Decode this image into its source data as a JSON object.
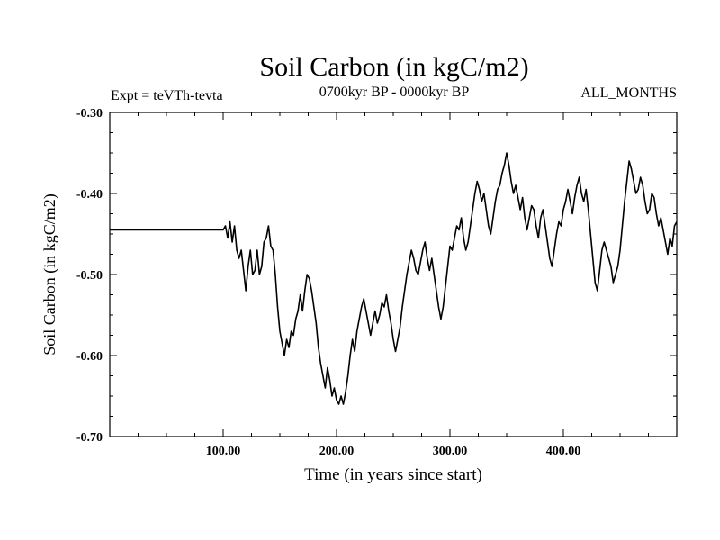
{
  "chart_data": {
    "type": "line",
    "title": "Soil Carbon (in kgC/m2)",
    "subtitle": "0700kyr BP - 0000kyr BP",
    "left_note": "Expt = teVTh-tevta",
    "right_note": "ALL_MONTHS",
    "xlabel": "Time (in years since start)",
    "ylabel": "Soil Carbon (in kgC/m2)",
    "xlim": [
      0,
      500
    ],
    "ylim": [
      -0.7,
      -0.3
    ],
    "x_tick_labels": [
      {
        "value": 100,
        "label": "100.00"
      },
      {
        "value": 200,
        "label": "200.00"
      },
      {
        "value": 300,
        "label": "300.00"
      },
      {
        "value": 400,
        "label": "400.00"
      }
    ],
    "y_tick_labels": [
      {
        "value": -0.3,
        "label": "-0.30"
      },
      {
        "value": -0.4,
        "label": "-0.40"
      },
      {
        "value": -0.5,
        "label": "-0.50"
      },
      {
        "value": -0.6,
        "label": "-0.60"
      },
      {
        "value": -0.7,
        "label": "-0.70"
      }
    ],
    "grid": false,
    "series": [
      {
        "color": "#000000",
        "points": [
          [
            0,
            -0.445
          ],
          [
            100,
            -0.445
          ],
          [
            102,
            -0.44
          ],
          [
            104,
            -0.455
          ],
          [
            106,
            -0.435
          ],
          [
            108,
            -0.46
          ],
          [
            110,
            -0.44
          ],
          [
            112,
            -0.47
          ],
          [
            114,
            -0.48
          ],
          [
            116,
            -0.47
          ],
          [
            118,
            -0.495
          ],
          [
            120,
            -0.52
          ],
          [
            122,
            -0.49
          ],
          [
            124,
            -0.47
          ],
          [
            126,
            -0.5
          ],
          [
            128,
            -0.495
          ],
          [
            130,
            -0.47
          ],
          [
            132,
            -0.5
          ],
          [
            134,
            -0.49
          ],
          [
            136,
            -0.46
          ],
          [
            138,
            -0.455
          ],
          [
            140,
            -0.44
          ],
          [
            142,
            -0.465
          ],
          [
            144,
            -0.47
          ],
          [
            146,
            -0.5
          ],
          [
            148,
            -0.54
          ],
          [
            150,
            -0.57
          ],
          [
            152,
            -0.585
          ],
          [
            154,
            -0.6
          ],
          [
            156,
            -0.58
          ],
          [
            158,
            -0.59
          ],
          [
            160,
            -0.57
          ],
          [
            162,
            -0.575
          ],
          [
            164,
            -0.555
          ],
          [
            166,
            -0.545
          ],
          [
            168,
            -0.525
          ],
          [
            170,
            -0.545
          ],
          [
            172,
            -0.52
          ],
          [
            174,
            -0.5
          ],
          [
            176,
            -0.505
          ],
          [
            178,
            -0.52
          ],
          [
            180,
            -0.54
          ],
          [
            182,
            -0.56
          ],
          [
            184,
            -0.59
          ],
          [
            186,
            -0.61
          ],
          [
            188,
            -0.625
          ],
          [
            190,
            -0.64
          ],
          [
            192,
            -0.615
          ],
          [
            194,
            -0.63
          ],
          [
            196,
            -0.65
          ],
          [
            198,
            -0.64
          ],
          [
            200,
            -0.655
          ],
          [
            202,
            -0.66
          ],
          [
            204,
            -0.65
          ],
          [
            206,
            -0.66
          ],
          [
            208,
            -0.645
          ],
          [
            210,
            -0.625
          ],
          [
            212,
            -0.6
          ],
          [
            214,
            -0.58
          ],
          [
            216,
            -0.595
          ],
          [
            218,
            -0.57
          ],
          [
            220,
            -0.555
          ],
          [
            222,
            -0.54
          ],
          [
            224,
            -0.53
          ],
          [
            226,
            -0.545
          ],
          [
            228,
            -0.56
          ],
          [
            230,
            -0.575
          ],
          [
            232,
            -0.56
          ],
          [
            234,
            -0.545
          ],
          [
            236,
            -0.56
          ],
          [
            238,
            -0.55
          ],
          [
            240,
            -0.535
          ],
          [
            242,
            -0.54
          ],
          [
            244,
            -0.525
          ],
          [
            246,
            -0.545
          ],
          [
            248,
            -0.56
          ],
          [
            250,
            -0.58
          ],
          [
            252,
            -0.595
          ],
          [
            254,
            -0.58
          ],
          [
            256,
            -0.565
          ],
          [
            258,
            -0.54
          ],
          [
            260,
            -0.52
          ],
          [
            262,
            -0.5
          ],
          [
            264,
            -0.485
          ],
          [
            266,
            -0.47
          ],
          [
            268,
            -0.48
          ],
          [
            270,
            -0.495
          ],
          [
            272,
            -0.5
          ],
          [
            274,
            -0.485
          ],
          [
            276,
            -0.47
          ],
          [
            278,
            -0.46
          ],
          [
            280,
            -0.48
          ],
          [
            282,
            -0.495
          ],
          [
            284,
            -0.48
          ],
          [
            286,
            -0.5
          ],
          [
            288,
            -0.52
          ],
          [
            290,
            -0.54
          ],
          [
            292,
            -0.555
          ],
          [
            294,
            -0.54
          ],
          [
            296,
            -0.515
          ],
          [
            298,
            -0.49
          ],
          [
            300,
            -0.465
          ],
          [
            302,
            -0.47
          ],
          [
            304,
            -0.455
          ],
          [
            306,
            -0.44
          ],
          [
            308,
            -0.445
          ],
          [
            310,
            -0.43
          ],
          [
            312,
            -0.455
          ],
          [
            314,
            -0.47
          ],
          [
            316,
            -0.46
          ],
          [
            318,
            -0.44
          ],
          [
            320,
            -0.42
          ],
          [
            322,
            -0.4
          ],
          [
            324,
            -0.385
          ],
          [
            326,
            -0.395
          ],
          [
            328,
            -0.41
          ],
          [
            330,
            -0.4
          ],
          [
            332,
            -0.42
          ],
          [
            334,
            -0.44
          ],
          [
            336,
            -0.45
          ],
          [
            338,
            -0.43
          ],
          [
            340,
            -0.41
          ],
          [
            342,
            -0.395
          ],
          [
            344,
            -0.39
          ],
          [
            346,
            -0.375
          ],
          [
            348,
            -0.365
          ],
          [
            350,
            -0.35
          ],
          [
            352,
            -0.365
          ],
          [
            354,
            -0.385
          ],
          [
            356,
            -0.4
          ],
          [
            358,
            -0.39
          ],
          [
            360,
            -0.405
          ],
          [
            362,
            -0.42
          ],
          [
            364,
            -0.405
          ],
          [
            366,
            -0.43
          ],
          [
            368,
            -0.445
          ],
          [
            370,
            -0.43
          ],
          [
            372,
            -0.415
          ],
          [
            374,
            -0.42
          ],
          [
            376,
            -0.44
          ],
          [
            378,
            -0.455
          ],
          [
            380,
            -0.43
          ],
          [
            382,
            -0.42
          ],
          [
            384,
            -0.44
          ],
          [
            386,
            -0.46
          ],
          [
            388,
            -0.48
          ],
          [
            390,
            -0.49
          ],
          [
            392,
            -0.47
          ],
          [
            394,
            -0.45
          ],
          [
            396,
            -0.435
          ],
          [
            398,
            -0.44
          ],
          [
            400,
            -0.42
          ],
          [
            402,
            -0.41
          ],
          [
            404,
            -0.395
          ],
          [
            406,
            -0.41
          ],
          [
            408,
            -0.425
          ],
          [
            410,
            -0.405
          ],
          [
            412,
            -0.39
          ],
          [
            414,
            -0.38
          ],
          [
            416,
            -0.4
          ],
          [
            418,
            -0.41
          ],
          [
            420,
            -0.395
          ],
          [
            422,
            -0.42
          ],
          [
            424,
            -0.45
          ],
          [
            426,
            -0.48
          ],
          [
            428,
            -0.51
          ],
          [
            430,
            -0.52
          ],
          [
            432,
            -0.495
          ],
          [
            434,
            -0.47
          ],
          [
            436,
            -0.46
          ],
          [
            438,
            -0.47
          ],
          [
            440,
            -0.48
          ],
          [
            442,
            -0.49
          ],
          [
            444,
            -0.51
          ],
          [
            446,
            -0.5
          ],
          [
            448,
            -0.49
          ],
          [
            450,
            -0.47
          ],
          [
            452,
            -0.44
          ],
          [
            454,
            -0.41
          ],
          [
            456,
            -0.385
          ],
          [
            458,
            -0.36
          ],
          [
            460,
            -0.37
          ],
          [
            462,
            -0.385
          ],
          [
            464,
            -0.4
          ],
          [
            466,
            -0.395
          ],
          [
            468,
            -0.38
          ],
          [
            470,
            -0.39
          ],
          [
            472,
            -0.41
          ],
          [
            474,
            -0.425
          ],
          [
            476,
            -0.42
          ],
          [
            478,
            -0.4
          ],
          [
            480,
            -0.405
          ],
          [
            482,
            -0.425
          ],
          [
            484,
            -0.44
          ],
          [
            486,
            -0.43
          ],
          [
            488,
            -0.445
          ],
          [
            490,
            -0.46
          ],
          [
            492,
            -0.475
          ],
          [
            494,
            -0.455
          ],
          [
            496,
            -0.465
          ],
          [
            498,
            -0.44
          ],
          [
            500,
            -0.435
          ]
        ]
      }
    ]
  }
}
